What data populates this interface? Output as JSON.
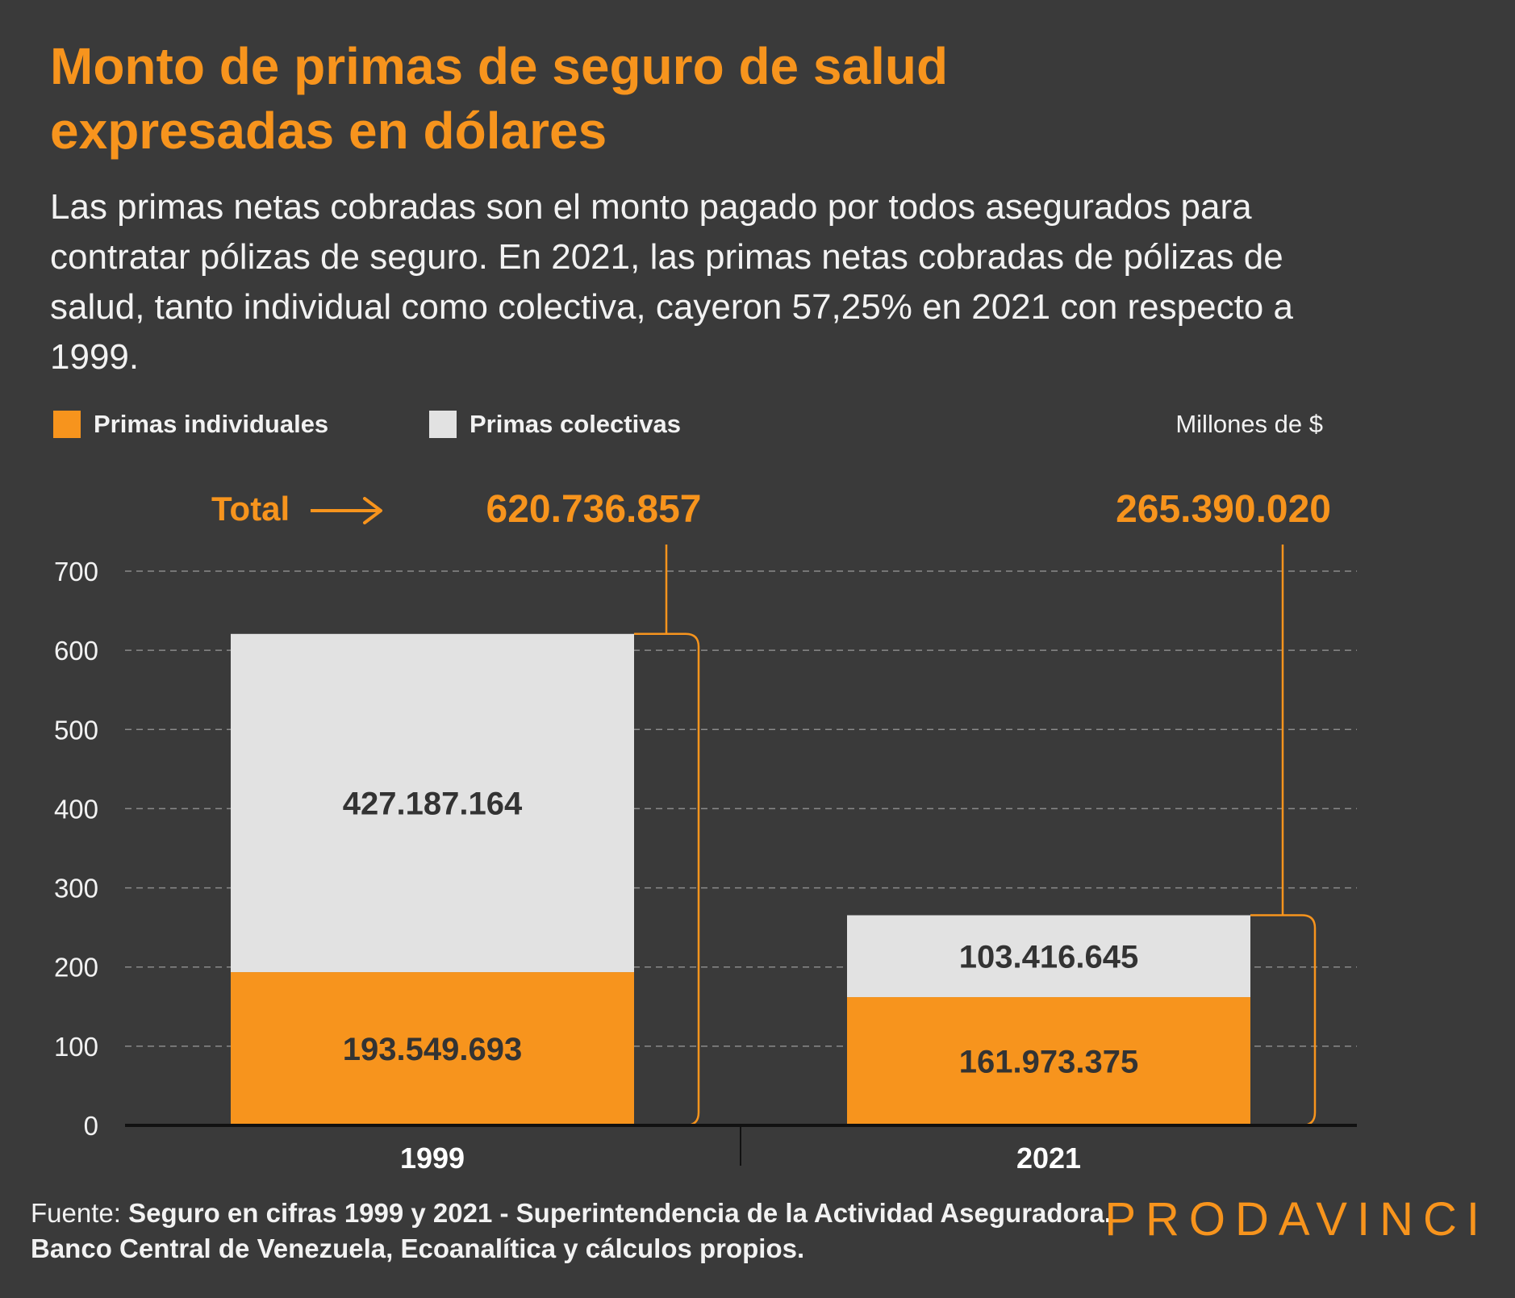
{
  "title": "Monto de primas de seguro de salud expresadas en dólares",
  "subtitle": "Las primas netas cobradas son el monto pagado por todos asegurados para contratar pólizas de seguro. En 2021, las primas netas cobradas de pólizas de salud, tanto individual como colectiva, cayeron 57,25% en 2021 con respecto a 1999.",
  "legend": {
    "individual": "Primas individuales",
    "colectiva": "Primas colectivas",
    "units": "Millones de $"
  },
  "total_label": "Total",
  "source": {
    "prefix": "Fuente: ",
    "text": "Seguro en cifras 1999 y 2021 - Superintendencia de la Actividad Aseguradora. Banco Central de Venezuela, Ecoanalítica y cálculos propios."
  },
  "brand": "PRODAVINCI",
  "colors": {
    "background": "#3a3a3a",
    "individual": "#f7941d",
    "colectiva": "#e2e2e2",
    "accent": "#f7941d",
    "bar_label": "#333333"
  },
  "chart_data": {
    "type": "bar",
    "stacked": true,
    "categories": [
      "1999",
      "2021"
    ],
    "series": [
      {
        "name": "Primas individuales",
        "values": [
          193.549693,
          161.973375
        ],
        "labels": [
          "193.549.693",
          "161.973.375"
        ]
      },
      {
        "name": "Primas colectivas",
        "values": [
          427.187164,
          103.416645
        ],
        "labels": [
          "427.187.164",
          "103.416.645"
        ]
      }
    ],
    "totals": [
      "620.736.857",
      "265.390.020"
    ],
    "total_values": [
      620.736857,
      265.39002
    ],
    "ylabel": "Millones de $",
    "ylim": [
      0,
      700
    ],
    "yticks": [
      0,
      100,
      200,
      300,
      400,
      500,
      600,
      700
    ],
    "grid": true,
    "legend_position": "top-left"
  }
}
